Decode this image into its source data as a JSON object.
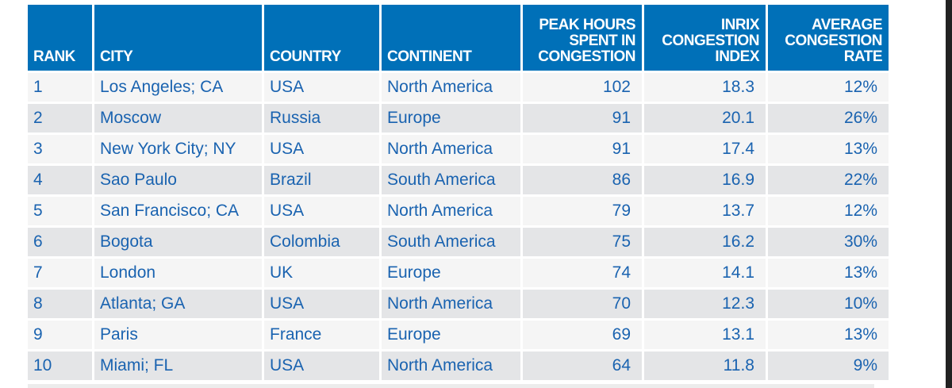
{
  "table": {
    "headers": [
      "RANK",
      "CITY",
      "COUNTRY",
      "CONTINENT",
      "PEAK HOURS SPENT IN CONGESTION",
      "INRIX CONGESTION INDEX",
      "AVERAGE CONGESTION RATE"
    ],
    "rows": [
      [
        "1",
        "Los Angeles; CA",
        "USA",
        "North America",
        "102",
        "18.3",
        "12%"
      ],
      [
        "2",
        "Moscow",
        "Russia",
        "Europe",
        "91",
        "20.1",
        "26%"
      ],
      [
        "3",
        "New York City; NY",
        "USA",
        "North America",
        "91",
        "17.4",
        "13%"
      ],
      [
        "4",
        "Sao Paulo",
        "Brazil",
        "South America",
        "86",
        "16.9",
        "22%"
      ],
      [
        "5",
        "San Francisco; CA",
        "USA",
        "North America",
        "79",
        "13.7",
        "12%"
      ],
      [
        "6",
        "Bogota",
        "Colombia",
        "South America",
        "75",
        "16.2",
        "30%"
      ],
      [
        "7",
        "London",
        "UK",
        "Europe",
        "74",
        "14.1",
        "13%"
      ],
      [
        "8",
        "Atlanta; GA",
        "USA",
        "North America",
        "70",
        "12.3",
        "10%"
      ],
      [
        "9",
        "Paris",
        "France",
        "Europe",
        "69",
        "13.1",
        "13%"
      ],
      [
        "10",
        "Miami; FL",
        "USA",
        "North America",
        "64",
        "11.8",
        "9%"
      ]
    ]
  },
  "colors": {
    "header": "#0070b8",
    "text": "#1a63b0",
    "row_light": "#f5f5f5",
    "row_dark": "#e4e5e7"
  }
}
